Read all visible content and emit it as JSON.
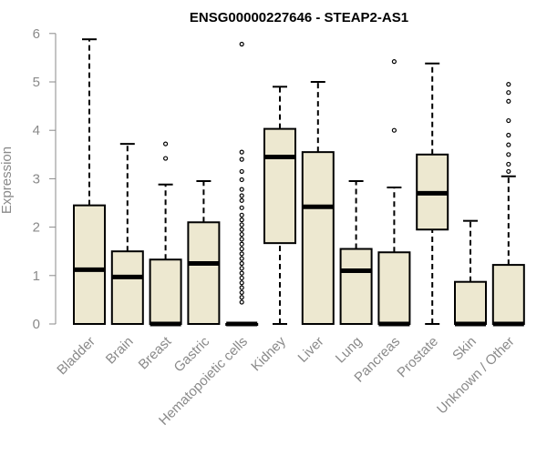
{
  "chart_data": {
    "type": "box",
    "title": "ENSG00000227646 - STEAP2-AS1",
    "xlabel": "",
    "ylabel": "Expression",
    "ylim": [
      0,
      6
    ],
    "yticks": [
      0,
      1,
      2,
      3,
      4,
      5,
      6
    ],
    "grid": false,
    "box_fill": "#ede8d0",
    "categories": [
      "Bladder",
      "Brain",
      "Breast",
      "Gastric",
      "Hematopoietic cells",
      "Kidney",
      "Liver",
      "Lung",
      "Pancreas",
      "Prostate",
      "Skin",
      "Unknown / Other"
    ],
    "boxes": [
      {
        "whisker_low": 0,
        "q1": 0,
        "median": 1.12,
        "q3": 2.45,
        "whisker_high": 5.88,
        "outliers": []
      },
      {
        "whisker_low": 0,
        "q1": 0,
        "median": 0.97,
        "q3": 1.5,
        "whisker_high": 3.72,
        "outliers": []
      },
      {
        "whisker_low": 0,
        "q1": 0,
        "median": 0,
        "q3": 1.33,
        "whisker_high": 2.88,
        "outliers": [
          3.42,
          3.72
        ]
      },
      {
        "whisker_low": 0,
        "q1": 0,
        "median": 1.25,
        "q3": 2.1,
        "whisker_high": 2.95,
        "outliers": []
      },
      {
        "whisker_low": 0,
        "q1": 0,
        "median": 0,
        "q3": 0,
        "whisker_high": 0,
        "outliers": [
          0.45,
          0.55,
          0.65,
          0.75,
          0.85,
          0.95,
          1.05,
          1.15,
          1.25,
          1.35,
          1.45,
          1.55,
          1.65,
          1.75,
          1.85,
          1.95,
          2.05,
          2.15,
          2.25,
          2.4,
          2.55,
          2.65,
          2.78,
          2.98,
          3.15,
          3.4,
          3.55,
          5.78
        ]
      },
      {
        "whisker_low": 0,
        "q1": 1.67,
        "median": 3.45,
        "q3": 4.03,
        "whisker_high": 4.9,
        "outliers": []
      },
      {
        "whisker_low": 0,
        "q1": 0,
        "median": 2.42,
        "q3": 3.55,
        "whisker_high": 5.0,
        "outliers": []
      },
      {
        "whisker_low": 0,
        "q1": 0,
        "median": 1.1,
        "q3": 1.55,
        "whisker_high": 2.95,
        "outliers": []
      },
      {
        "whisker_low": 0,
        "q1": 0,
        "median": 0,
        "q3": 1.48,
        "whisker_high": 2.82,
        "outliers": [
          4.0,
          5.42
        ]
      },
      {
        "whisker_low": 0,
        "q1": 1.95,
        "median": 2.7,
        "q3": 3.5,
        "whisker_high": 5.38,
        "outliers": []
      },
      {
        "whisker_low": 0,
        "q1": 0,
        "median": 0,
        "q3": 0.87,
        "whisker_high": 2.13,
        "outliers": []
      },
      {
        "whisker_low": 0,
        "q1": 0,
        "median": 0,
        "q3": 1.22,
        "whisker_high": 3.05,
        "outliers": [
          3.15,
          3.3,
          3.5,
          3.7,
          3.9,
          4.2,
          4.6,
          4.78,
          4.95
        ]
      }
    ]
  }
}
